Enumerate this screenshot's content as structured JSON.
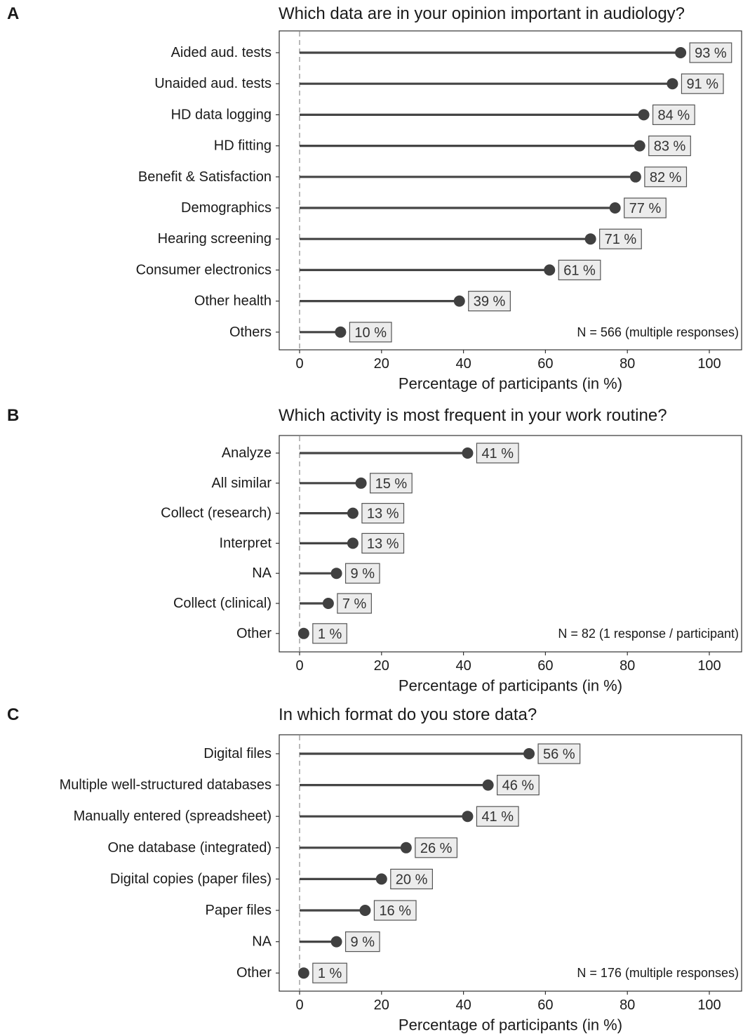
{
  "chart_data": [
    {
      "type": "lollipop",
      "panel": "A",
      "title": "Which data are in your opinion important in audiology?",
      "categories": [
        "Aided aud. tests",
        "Unaided aud. tests",
        "HD data logging",
        "HD fitting",
        "Benefit & Satisfaction",
        "Demographics",
        "Hearing screening",
        "Consumer electronics",
        "Other health",
        "Others"
      ],
      "values": [
        93,
        91,
        84,
        83,
        82,
        77,
        71,
        61,
        39,
        10
      ],
      "value_labels": [
        "93 %",
        "91 %",
        "84 %",
        "83 %",
        "82 %",
        "77 %",
        "71 %",
        "61 %",
        "39 %",
        "10 %"
      ],
      "annotation": "N = 566 (multiple responses)",
      "xlabel": "Percentage of participants (in %)",
      "xlim": [
        0,
        100
      ],
      "xticks": [
        0,
        20,
        40,
        60,
        80,
        100
      ],
      "xtick_labels": [
        "0",
        "20",
        "40",
        "60",
        "80",
        "100"
      ],
      "reference_line": 0,
      "grid": false
    },
    {
      "type": "lollipop",
      "panel": "B",
      "title": "Which activity is most frequent in your work routine?",
      "categories": [
        "Analyze",
        "All similar",
        "Collect (research)",
        "Interpret",
        "NA",
        "Collect (clinical)",
        "Other"
      ],
      "values": [
        41,
        15,
        13,
        13,
        9,
        7,
        1
      ],
      "value_labels": [
        "41 %",
        "15 %",
        "13 %",
        "13 %",
        "9 %",
        "7 %",
        "1 %"
      ],
      "annotation": "N = 82 (1 response / participant)",
      "xlabel": "Percentage of participants (in %)",
      "xlim": [
        0,
        100
      ],
      "xticks": [
        0,
        20,
        40,
        60,
        80,
        100
      ],
      "xtick_labels": [
        "0",
        "20",
        "40",
        "60",
        "80",
        "100"
      ],
      "reference_line": 0,
      "grid": false
    },
    {
      "type": "lollipop",
      "panel": "C",
      "title": "In which format do you store data?",
      "categories": [
        "Digital files",
        "Multiple well-structured databases",
        "Manually entered (spreadsheet)",
        "One database (integrated)",
        "Digital copies (paper files)",
        "Paper files",
        "NA",
        "Other"
      ],
      "values": [
        56,
        46,
        41,
        26,
        20,
        16,
        9,
        1
      ],
      "value_labels": [
        "56 %",
        "46 %",
        "41 %",
        "26 %",
        "20 %",
        "16 %",
        "9 %",
        "1 %"
      ],
      "annotation": "N = 176 (multiple responses)",
      "xlabel": "Percentage of participants (in %)",
      "xlim": [
        0,
        100
      ],
      "xticks": [
        0,
        20,
        40,
        60,
        80,
        100
      ],
      "xtick_labels": [
        "0",
        "20",
        "40",
        "60",
        "80",
        "100"
      ],
      "reference_line": 0,
      "grid": false
    }
  ],
  "colors": {
    "stem": "#454545",
    "dot": "#404040",
    "label_box_fill": "#ececec",
    "label_box_stroke": "#555555",
    "zero_line": "#a8a8a8"
  }
}
